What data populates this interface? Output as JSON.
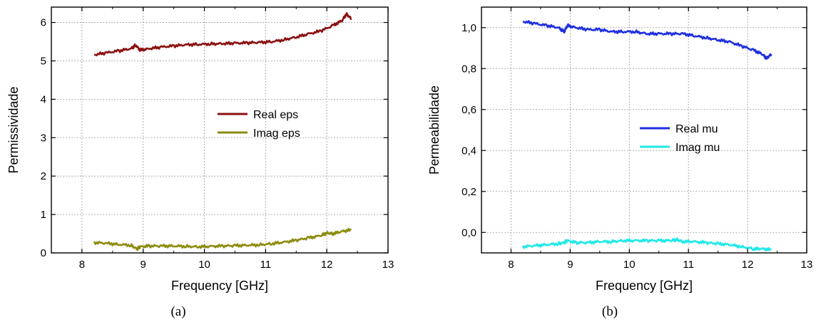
{
  "chart_data": [
    {
      "type": "line",
      "caption": "(a)",
      "xlabel": "Frequency [GHz]",
      "ylabel": "Permissividade",
      "xlim": [
        7.5,
        13
      ],
      "ylim": [
        0,
        6.4
      ],
      "xticks": [
        8,
        9,
        10,
        11,
        12,
        13
      ],
      "yticks": [
        0,
        1,
        2,
        3,
        4,
        5,
        6
      ],
      "ytick_labels": [
        "0",
        "1",
        "2",
        "3",
        "4",
        "5",
        "6"
      ],
      "grid": true,
      "legend_position": "center-right",
      "series": [
        {
          "name": "Real eps",
          "color": "#8b1010",
          "x": [
            8.2,
            8.4,
            8.6,
            8.8,
            8.88,
            8.95,
            9.1,
            9.3,
            9.5,
            9.7,
            9.9,
            10.1,
            10.3,
            10.5,
            10.7,
            10.9,
            11.1,
            11.3,
            11.5,
            11.7,
            11.9,
            12.1,
            12.25,
            12.32,
            12.4
          ],
          "y": [
            5.16,
            5.21,
            5.26,
            5.32,
            5.41,
            5.28,
            5.32,
            5.36,
            5.39,
            5.42,
            5.43,
            5.44,
            5.45,
            5.46,
            5.47,
            5.48,
            5.5,
            5.55,
            5.62,
            5.7,
            5.78,
            5.92,
            6.05,
            6.22,
            6.1
          ]
        },
        {
          "name": "Imag eps",
          "color": "#8c8c10",
          "x": [
            8.2,
            8.4,
            8.6,
            8.8,
            8.9,
            8.95,
            9.1,
            9.3,
            9.5,
            9.7,
            9.9,
            10.1,
            10.3,
            10.5,
            10.7,
            10.9,
            11.1,
            11.3,
            11.5,
            11.7,
            11.9,
            12.0,
            12.1,
            12.25,
            12.4
          ],
          "y": [
            0.27,
            0.25,
            0.22,
            0.2,
            0.1,
            0.16,
            0.18,
            0.18,
            0.18,
            0.17,
            0.16,
            0.17,
            0.18,
            0.19,
            0.2,
            0.21,
            0.24,
            0.28,
            0.33,
            0.39,
            0.45,
            0.52,
            0.5,
            0.56,
            0.6
          ]
        }
      ]
    },
    {
      "type": "line",
      "caption": "(b)",
      "xlabel": "Frequency [GHz]",
      "ylabel": "Permeabilidade",
      "xlim": [
        7.5,
        13
      ],
      "ylim": [
        -0.1,
        1.1
      ],
      "xticks": [
        8,
        9,
        10,
        11,
        12,
        13
      ],
      "yticks": [
        0.0,
        0.2,
        0.4,
        0.6,
        0.8,
        1.0
      ],
      "ytick_labels": [
        "0,0",
        "0,2",
        "0,4",
        "0,6",
        "0,8",
        "1,0"
      ],
      "grid": true,
      "legend_position": "center-right",
      "series": [
        {
          "name": "Real mu",
          "color": "#1f2fe0",
          "x": [
            8.2,
            8.4,
            8.6,
            8.8,
            8.9,
            8.95,
            9.1,
            9.3,
            9.5,
            9.7,
            9.9,
            10.1,
            10.3,
            10.5,
            10.7,
            10.9,
            11.1,
            11.3,
            11.5,
            11.7,
            11.9,
            12.1,
            12.25,
            12.32,
            12.4
          ],
          "y": [
            1.03,
            1.02,
            1.01,
            1.0,
            0.98,
            1.01,
            1.0,
            0.99,
            0.99,
            0.98,
            0.98,
            0.98,
            0.97,
            0.97,
            0.97,
            0.97,
            0.96,
            0.95,
            0.94,
            0.93,
            0.91,
            0.89,
            0.87,
            0.85,
            0.87
          ]
        },
        {
          "name": "Imag mu",
          "color": "#20e8e8",
          "x": [
            8.2,
            8.4,
            8.6,
            8.8,
            8.9,
            8.95,
            9.1,
            9.3,
            9.5,
            9.7,
            9.9,
            10.1,
            10.3,
            10.5,
            10.7,
            10.8,
            10.9,
            11.1,
            11.3,
            11.5,
            11.7,
            11.9,
            12.1,
            12.25,
            12.4
          ],
          "y": [
            -0.07,
            -0.065,
            -0.06,
            -0.055,
            -0.05,
            -0.04,
            -0.05,
            -0.05,
            -0.045,
            -0.045,
            -0.04,
            -0.04,
            -0.04,
            -0.04,
            -0.04,
            -0.035,
            -0.045,
            -0.045,
            -0.05,
            -0.055,
            -0.06,
            -0.07,
            -0.08,
            -0.08,
            -0.085
          ]
        }
      ]
    }
  ]
}
